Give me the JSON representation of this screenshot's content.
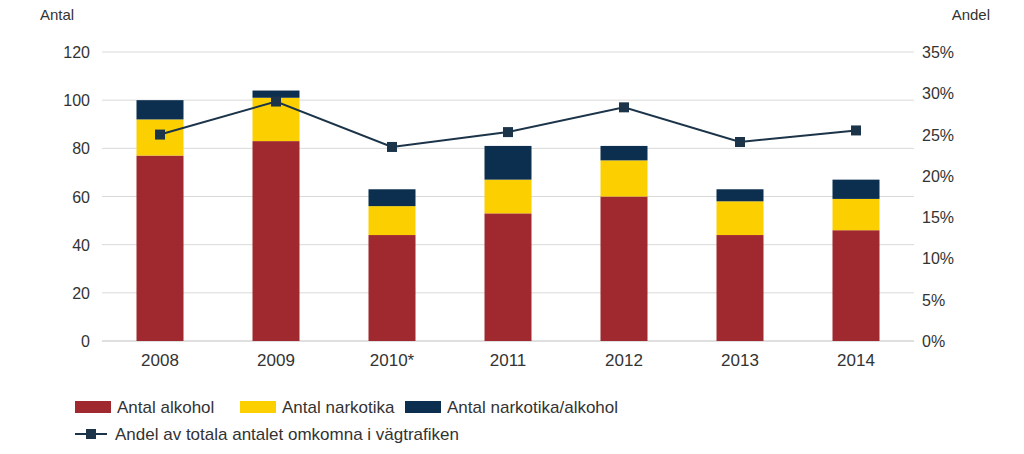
{
  "chart_data": {
    "type": "bar",
    "stacked": true,
    "grid": true,
    "legend": "bottom",
    "y_label": "Antal",
    "y2_label": "Andel",
    "categories": [
      "2008",
      "2009",
      "2010*",
      "2011",
      "2012",
      "2013",
      "2014"
    ],
    "ylim": [
      0,
      120
    ],
    "yticks": [
      0,
      20,
      40,
      60,
      80,
      100,
      120
    ],
    "y2lim": [
      0,
      35
    ],
    "y2ticks": [
      {
        "value": 0,
        "label": "0%"
      },
      {
        "value": 5,
        "label": "5%"
      },
      {
        "value": 10,
        "label": "10%"
      },
      {
        "value": 15,
        "label": "15%"
      },
      {
        "value": 20,
        "label": "20%"
      },
      {
        "value": 25,
        "label": "25%"
      },
      {
        "value": 30,
        "label": "30%"
      },
      {
        "value": 35,
        "label": "35%"
      }
    ],
    "series": [
      {
        "name": "Antal alkohol",
        "color": "#a0282f",
        "values": [
          77,
          83,
          44,
          53,
          60,
          44,
          46
        ]
      },
      {
        "name": "Antal narkotika",
        "color": "#fcd000",
        "values": [
          15,
          18,
          12,
          14,
          15,
          14,
          13
        ]
      },
      {
        "name": "Antal narkotika/alkohol",
        "color": "#0d2f4f",
        "values": [
          8,
          3,
          7,
          14,
          6,
          5,
          8
        ]
      },
      {
        "name": "Andel av totala antalet omkomna i vägtrafiken",
        "type": "line",
        "axis": "y2",
        "marker": "square",
        "color": "#1c3449",
        "values": [
          25,
          29,
          23.5,
          25.3,
          28.3,
          24.1,
          25.5
        ]
      }
    ]
  }
}
